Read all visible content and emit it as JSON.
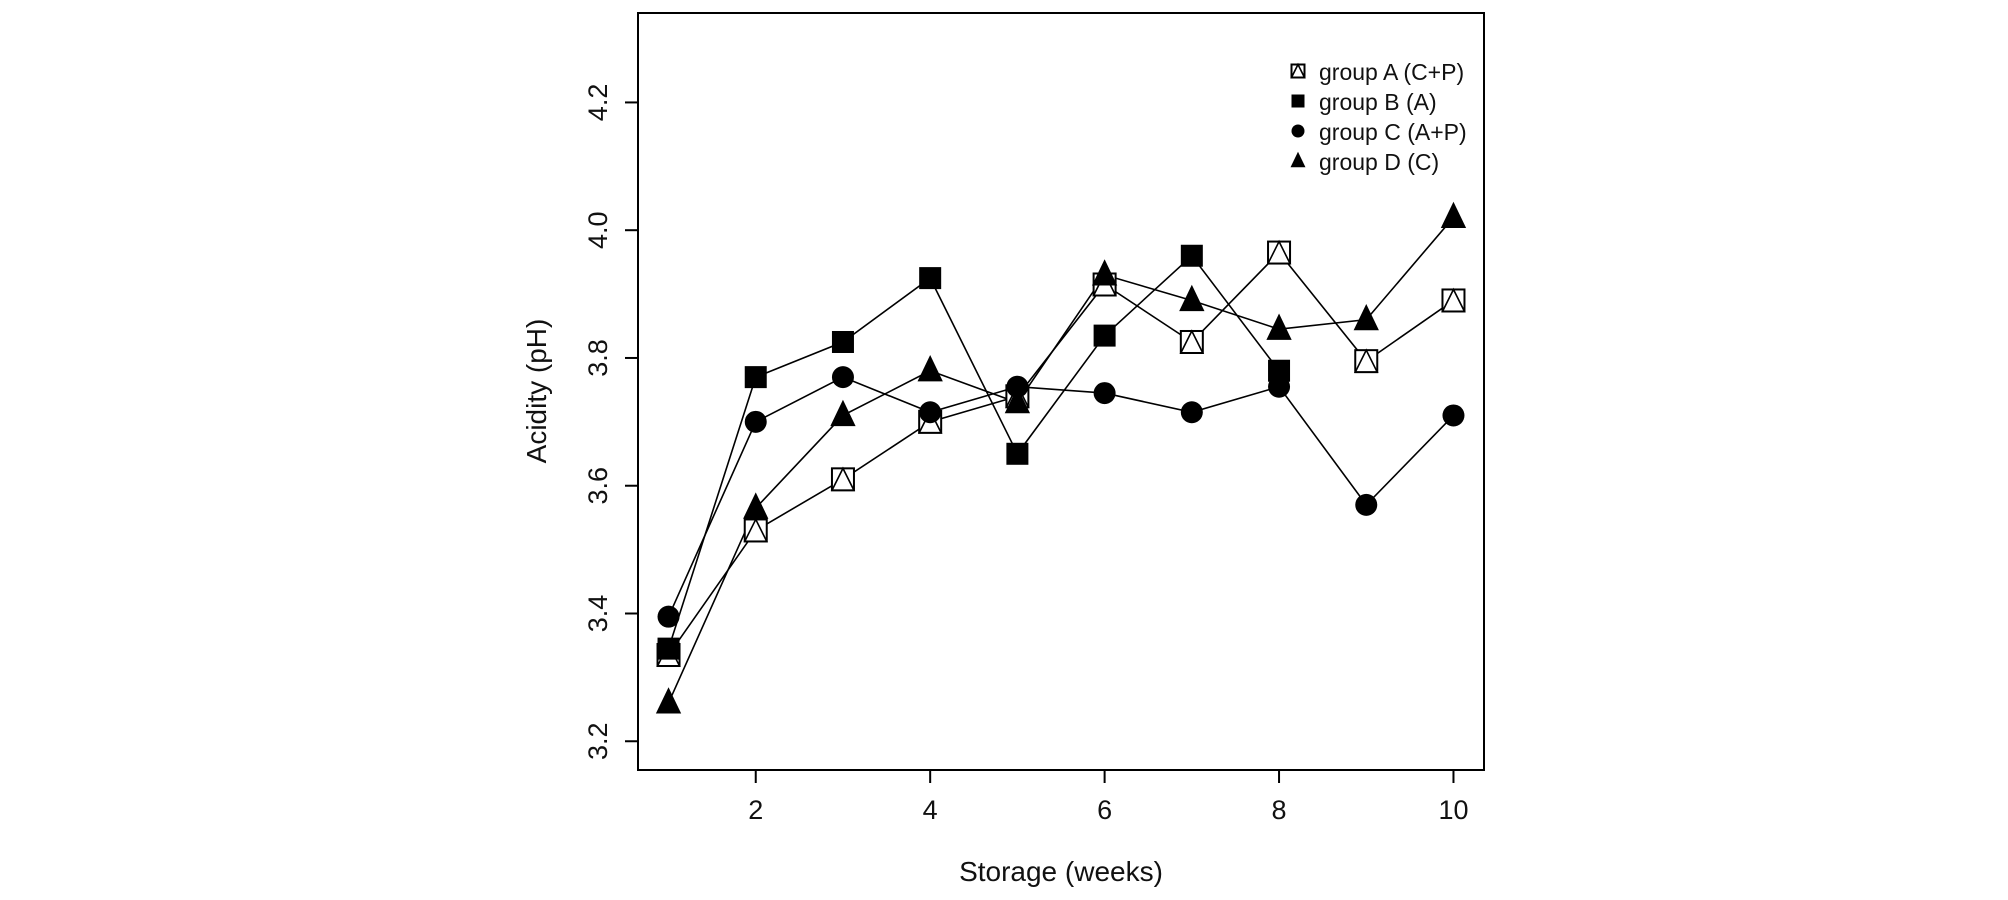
{
  "chart_data": {
    "type": "line",
    "title": "",
    "xlabel": "Storage (weeks)",
    "ylabel": "Acidity (pH)",
    "xlim": [
      0.65,
      10.35
    ],
    "ylim": [
      3.155,
      4.34
    ],
    "x_ticks": [
      2,
      4,
      6,
      8,
      10
    ],
    "y_ticks": [
      3.2,
      3.4,
      3.6,
      3.8,
      4.0,
      4.2
    ],
    "grid": false,
    "legend_position": "top-right",
    "x": [
      1,
      2,
      3,
      4,
      5,
      6,
      7,
      8,
      9,
      10
    ],
    "series": [
      {
        "name": "group A (C+P)",
        "marker": "square-open-triangle",
        "color": "#000000",
        "values": [
          3.335,
          3.53,
          3.61,
          3.7,
          3.74,
          3.915,
          3.825,
          3.965,
          3.795,
          3.89
        ]
      },
      {
        "name": "group B (A)",
        "marker": "square-filled",
        "color": "#000000",
        "values": [
          3.345,
          3.77,
          3.825,
          3.925,
          3.65,
          3.835,
          3.96,
          3.78,
          null,
          null
        ]
      },
      {
        "name": "group C (A+P)",
        "marker": "circle-filled",
        "color": "#000000",
        "values": [
          3.395,
          3.7,
          3.77,
          3.715,
          3.755,
          3.745,
          3.715,
          3.755,
          3.57,
          3.71
        ]
      },
      {
        "name": "group D (C)",
        "marker": "triangle-filled",
        "color": "#000000",
        "values": [
          3.26,
          3.565,
          3.71,
          3.78,
          3.73,
          3.93,
          3.89,
          3.845,
          3.86,
          4.02
        ]
      }
    ]
  }
}
